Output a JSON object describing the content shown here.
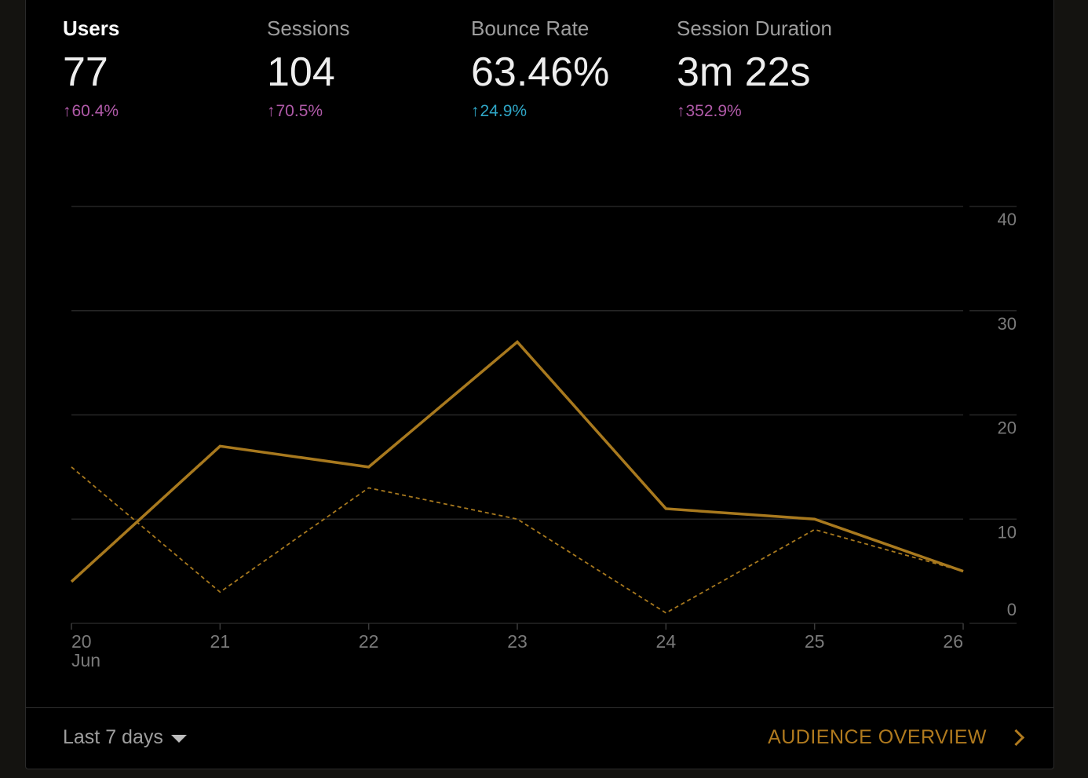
{
  "metrics": [
    {
      "label": "Users",
      "value": "77",
      "delta": "60.4%",
      "delta_color": "#b05aa8",
      "active": true
    },
    {
      "label": "Sessions",
      "value": "104",
      "delta": "70.5%",
      "delta_color": "#b05aa8",
      "active": false
    },
    {
      "label": "Bounce Rate",
      "value": "63.46%",
      "delta": "24.9%",
      "delta_color": "#2fa6c6",
      "active": false
    },
    {
      "label": "Session Duration",
      "value": "3m 22s",
      "delta": "352.9%",
      "delta_color": "#b05aa8",
      "active": false
    }
  ],
  "chart_data": {
    "type": "line",
    "categories": [
      "20",
      "21",
      "22",
      "23",
      "24",
      "25",
      "26"
    ],
    "first_category_sublabel": "Jun",
    "series": [
      {
        "values": [
          4,
          17,
          15,
          27,
          11,
          10,
          5
        ],
        "style": "solid",
        "color": "#a8791e"
      },
      {
        "values": [
          15,
          3,
          13,
          10,
          1,
          9,
          5
        ],
        "style": "dashed",
        "color": "#a8791e"
      }
    ],
    "ylim": [
      0,
      40
    ],
    "yticks": [
      "0",
      "10",
      "20",
      "30",
      "40"
    ],
    "y_axis_position": "right",
    "grid": true
  },
  "footer": {
    "range_label": "Last 7 days",
    "audience_label": "AUDIENCE OVERVIEW"
  },
  "icons": {
    "dropdown": "caret-down-icon",
    "audience": "chevron-right-icon",
    "delta": "arrow-up-icon"
  }
}
